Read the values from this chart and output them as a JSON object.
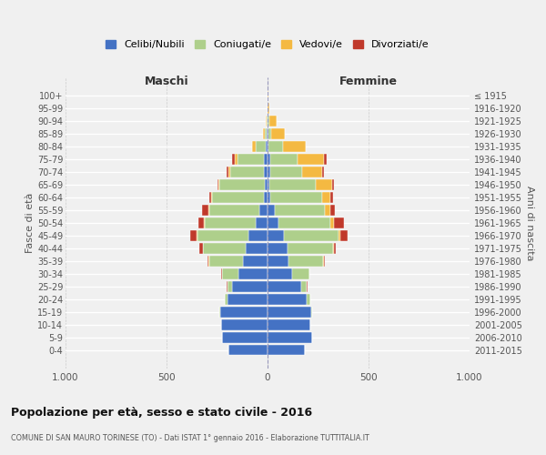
{
  "age_groups": [
    "0-4",
    "5-9",
    "10-14",
    "15-19",
    "20-24",
    "25-29",
    "30-34",
    "35-39",
    "40-44",
    "45-49",
    "50-54",
    "55-59",
    "60-64",
    "65-69",
    "70-74",
    "75-79",
    "80-84",
    "85-89",
    "90-94",
    "95-99",
    "100+"
  ],
  "birth_years": [
    "2011-2015",
    "2006-2010",
    "2001-2005",
    "1996-2000",
    "1991-1995",
    "1986-1990",
    "1981-1985",
    "1976-1980",
    "1971-1975",
    "1966-1970",
    "1961-1965",
    "1956-1960",
    "1951-1955",
    "1946-1950",
    "1941-1945",
    "1936-1940",
    "1931-1935",
    "1926-1930",
    "1921-1925",
    "1916-1920",
    "≤ 1915"
  ],
  "maschi": {
    "celibi": [
      195,
      225,
      230,
      235,
      200,
      175,
      145,
      120,
      110,
      95,
      60,
      40,
      20,
      15,
      20,
      20,
      10,
      5,
      2,
      2,
      2
    ],
    "coniugati": [
      0,
      0,
      0,
      5,
      10,
      25,
      80,
      170,
      210,
      250,
      250,
      250,
      255,
      225,
      165,
      130,
      50,
      10,
      3,
      0,
      0
    ],
    "vedovi": [
      0,
      0,
      0,
      0,
      0,
      0,
      0,
      2,
      2,
      5,
      5,
      5,
      5,
      5,
      8,
      12,
      15,
      8,
      2,
      0,
      0
    ],
    "divorziati": [
      0,
      0,
      0,
      0,
      0,
      2,
      5,
      5,
      15,
      35,
      28,
      28,
      10,
      5,
      8,
      12,
      0,
      0,
      0,
      0,
      0
    ]
  },
  "femmine": {
    "nubili": [
      185,
      220,
      210,
      215,
      195,
      165,
      120,
      105,
      100,
      80,
      55,
      35,
      15,
      10,
      15,
      15,
      5,
      5,
      2,
      2,
      2
    ],
    "coniugate": [
      0,
      0,
      0,
      5,
      15,
      30,
      85,
      170,
      225,
      270,
      255,
      250,
      255,
      230,
      155,
      135,
      70,
      15,
      5,
      0,
      0
    ],
    "vedove": [
      0,
      0,
      0,
      0,
      0,
      0,
      2,
      5,
      5,
      10,
      20,
      25,
      40,
      80,
      100,
      130,
      115,
      65,
      40,
      8,
      2
    ],
    "divorziate": [
      0,
      0,
      0,
      0,
      0,
      2,
      2,
      5,
      10,
      35,
      50,
      25,
      15,
      8,
      8,
      12,
      0,
      0,
      0,
      0,
      0
    ]
  },
  "colors": {
    "celibi": "#4472C4",
    "coniugati": "#AECF8B",
    "vedovi": "#F4B942",
    "divorziati": "#C0392B"
  },
  "legend_labels": [
    "Celibi/Nubili",
    "Coniugati/e",
    "Vedovi/e",
    "Divorziati/e"
  ],
  "title": "Popolazione per età, sesso e stato civile - 2016",
  "subtitle": "COMUNE DI SAN MAURO TORINESE (TO) - Dati ISTAT 1° gennaio 2016 - Elaborazione TUTTITALIA.IT",
  "xlabel_left": "Maschi",
  "xlabel_right": "Femmine",
  "ylabel_left": "Fasce di età",
  "ylabel_right": "Anni di nascita",
  "xlim": 1000,
  "background_color": "#f0f0f0",
  "bar_height": 0.85
}
